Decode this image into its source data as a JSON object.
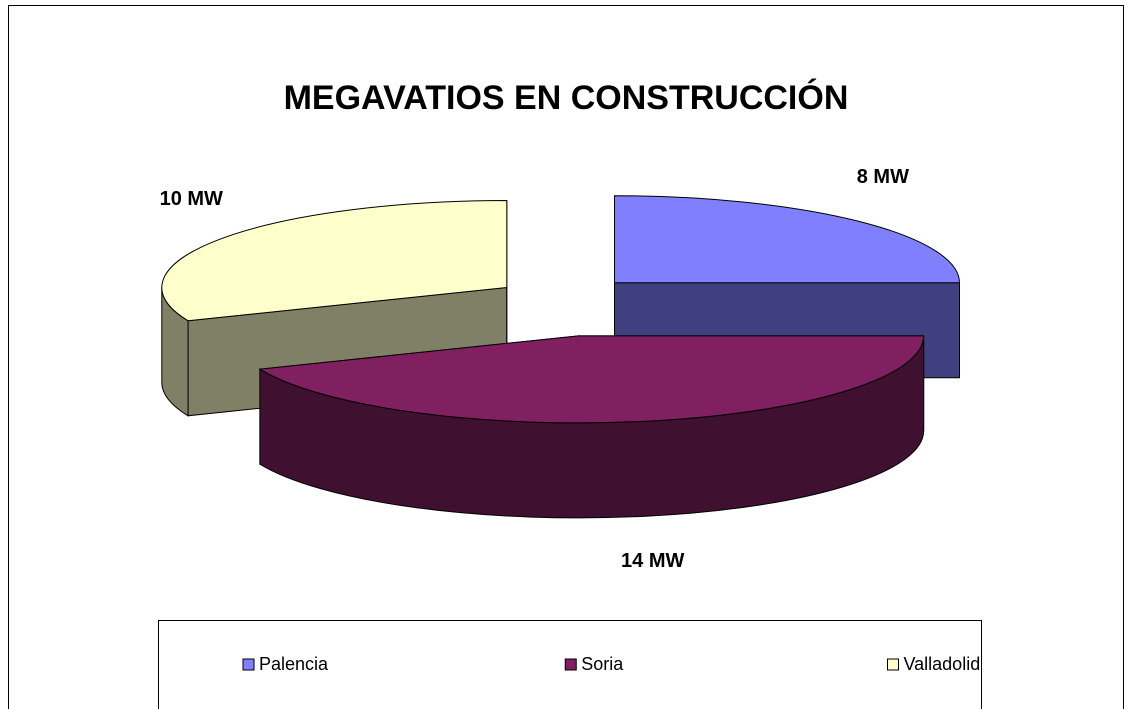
{
  "chart_data": {
    "type": "pie3d",
    "title": "MEGAVATIOS EN CONSTRUCCIÓN",
    "categories": [
      "Palencia",
      "Soria",
      "Valladolid"
    ],
    "values": [
      8,
      14,
      10
    ],
    "value_labels": [
      "8 MW",
      "14 MW",
      "10 MW"
    ],
    "colors": [
      "#8080ff",
      "#802060",
      "#ffffcc"
    ],
    "legend": "bottom"
  }
}
